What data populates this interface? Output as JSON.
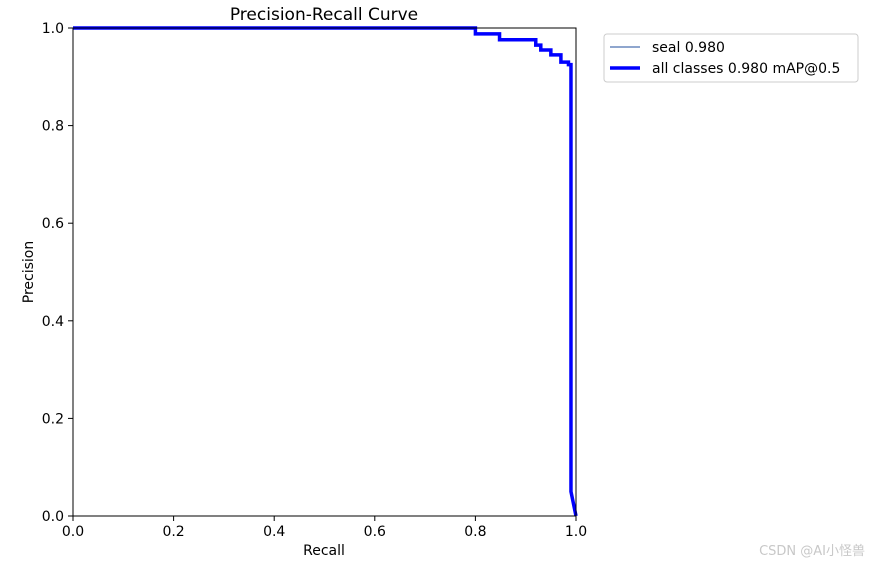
{
  "watermark": "CSDN @AI小怪兽",
  "chart_data": {
    "type": "line",
    "title": "Precision-Recall Curve",
    "xlabel": "Recall",
    "ylabel": "Precision",
    "xlim": [
      0.0,
      1.0
    ],
    "ylim": [
      0.0,
      1.0
    ],
    "x_ticks": [
      0.0,
      0.2,
      0.4,
      0.6,
      0.8,
      1.0
    ],
    "y_ticks": [
      0.0,
      0.2,
      0.4,
      0.6,
      0.8,
      1.0
    ],
    "x_tick_labels": [
      "0.0",
      "0.2",
      "0.4",
      "0.6",
      "0.8",
      "1.0"
    ],
    "y_tick_labels": [
      "0.0",
      "0.2",
      "0.4",
      "0.6",
      "0.8",
      "1.0"
    ],
    "grid": false,
    "legend_position": "outside-top-right",
    "series": [
      {
        "name": "seal 0.980",
        "color": "#4c72b0",
        "style": "thin",
        "x": [
          0.0,
          0.8,
          0.8,
          0.848,
          0.848,
          0.92,
          0.92,
          0.93,
          0.93,
          0.95,
          0.95,
          0.97,
          0.97,
          0.985,
          0.985,
          0.99,
          0.99,
          1.0
        ],
        "y": [
          1.0,
          1.0,
          0.988,
          0.988,
          0.976,
          0.976,
          0.965,
          0.965,
          0.955,
          0.955,
          0.945,
          0.945,
          0.93,
          0.93,
          0.925,
          0.925,
          0.05,
          0.0
        ]
      },
      {
        "name": "all classes 0.980 mAP@0.5",
        "color": "#0000ff",
        "style": "thick",
        "x": [
          0.0,
          0.8,
          0.8,
          0.848,
          0.848,
          0.92,
          0.92,
          0.93,
          0.93,
          0.95,
          0.95,
          0.97,
          0.97,
          0.985,
          0.985,
          0.99,
          0.99,
          1.0
        ],
        "y": [
          1.0,
          1.0,
          0.988,
          0.988,
          0.976,
          0.976,
          0.965,
          0.965,
          0.955,
          0.955,
          0.945,
          0.945,
          0.93,
          0.93,
          0.925,
          0.925,
          0.05,
          0.0
        ]
      }
    ]
  }
}
